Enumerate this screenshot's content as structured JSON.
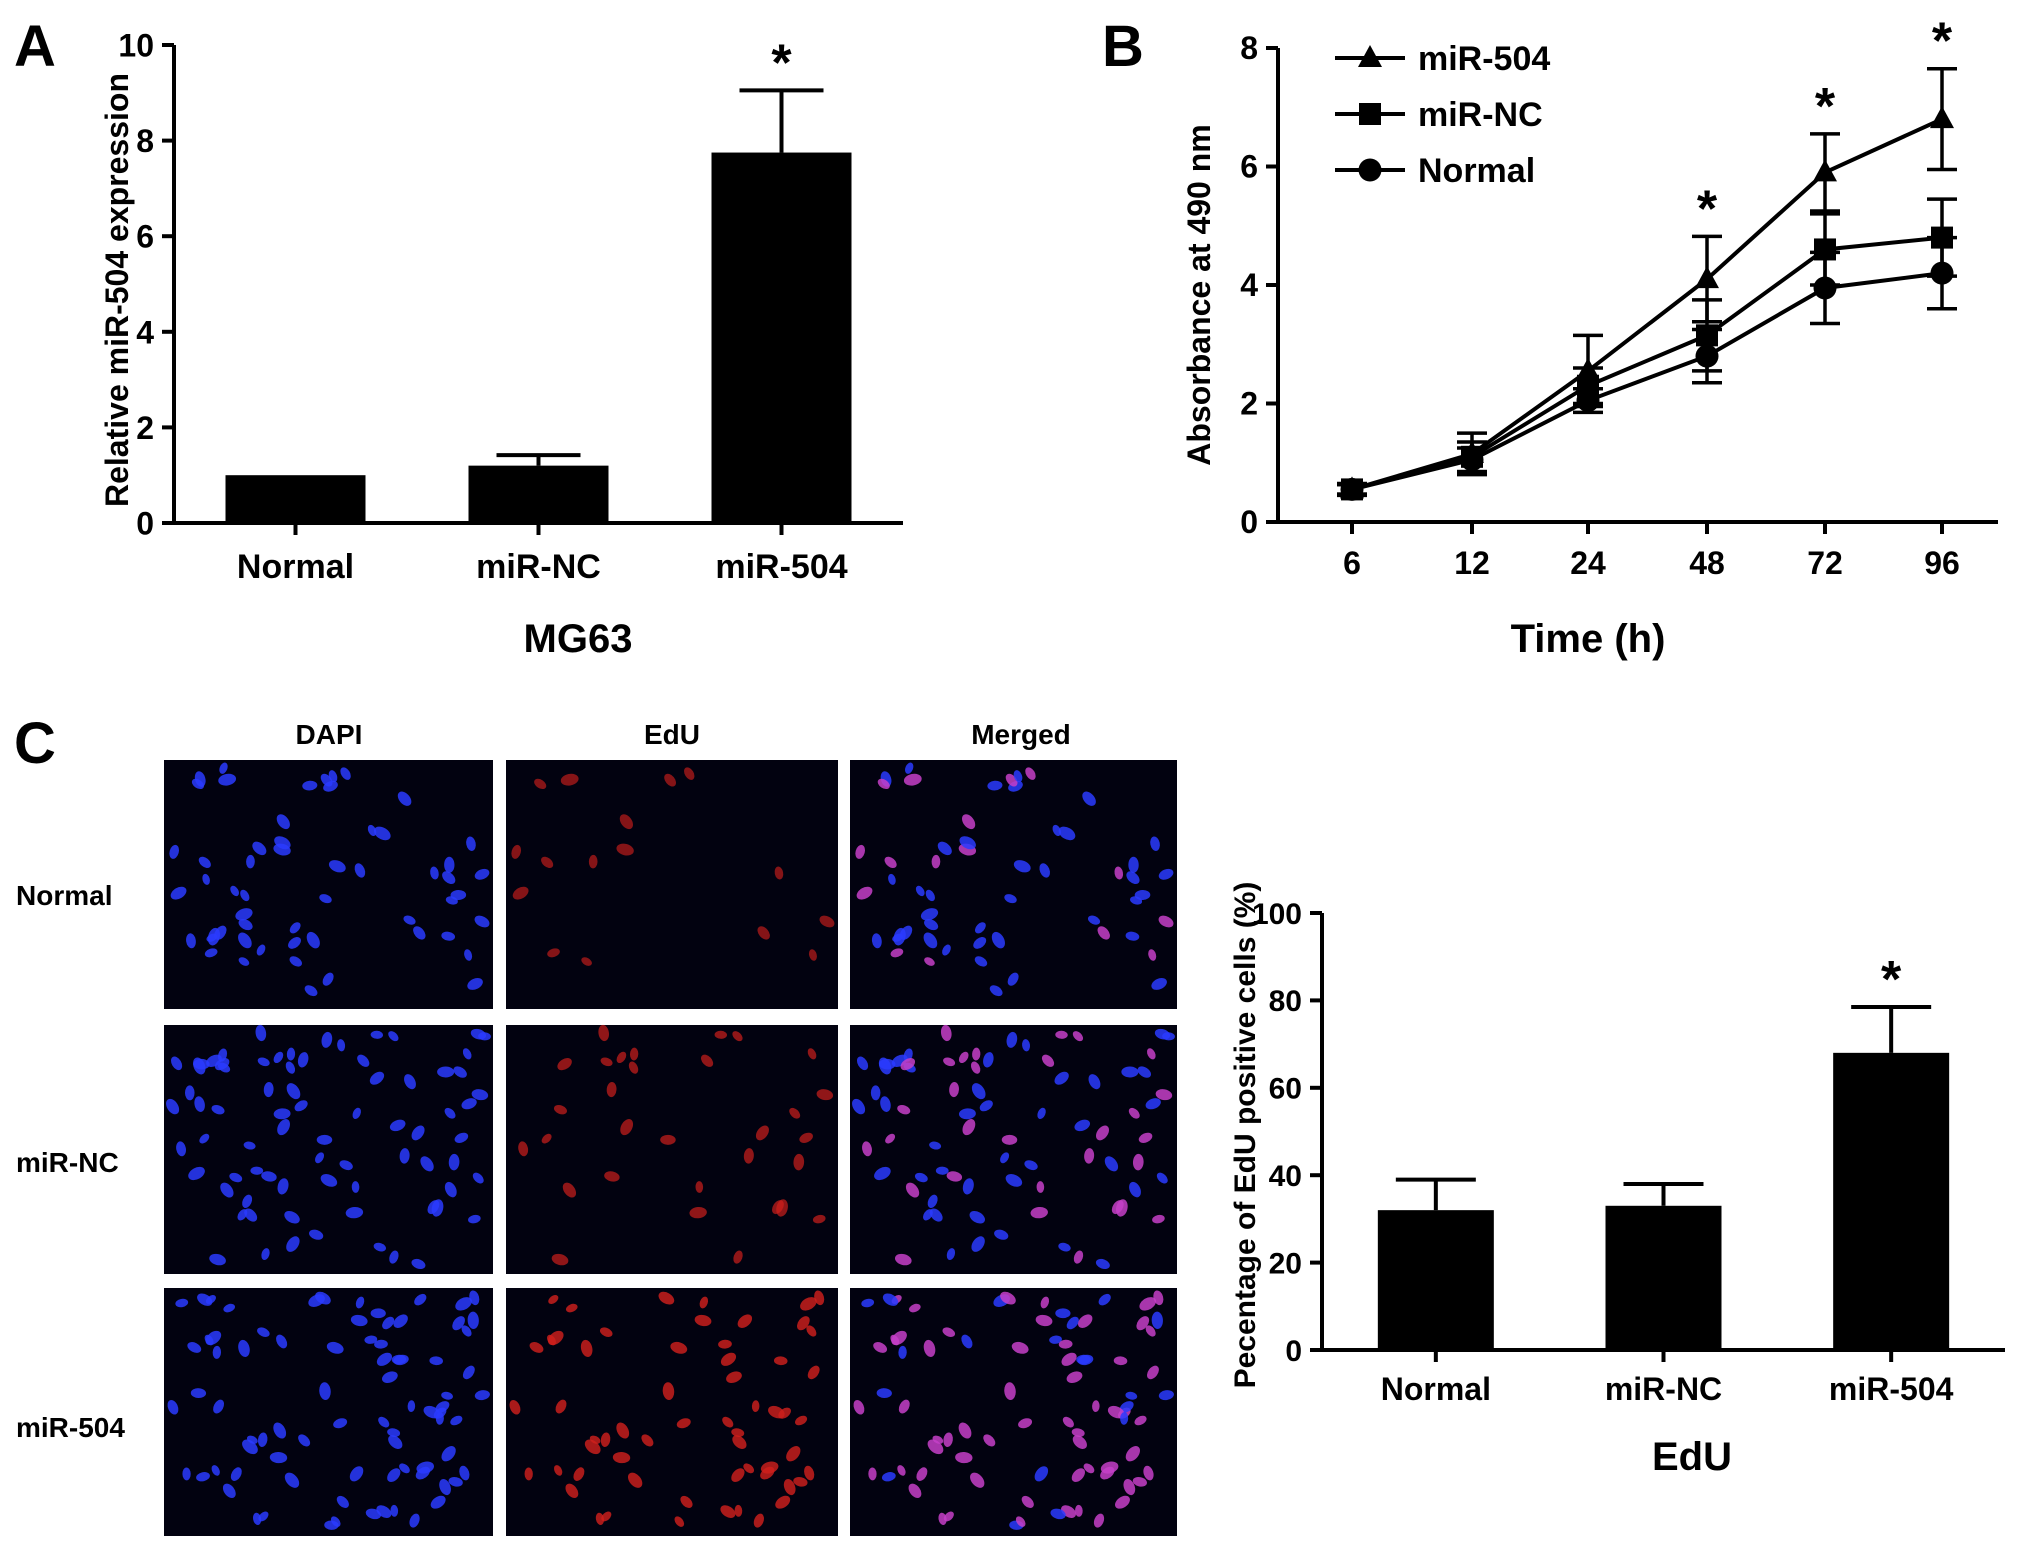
{
  "panels": {
    "a": {
      "label": "A"
    },
    "b": {
      "label": "B"
    },
    "c": {
      "label": "C"
    }
  },
  "chart_data": [
    {
      "id": "panel-a",
      "type": "bar",
      "categories": [
        "Normal",
        "miR-NC",
        "miR-504"
      ],
      "values": [
        1.0,
        1.2,
        7.75
      ],
      "errors": [
        0,
        0.22,
        1.3
      ],
      "significance": [
        "",
        "",
        "*"
      ],
      "xlabel": "MG63",
      "ylabel": "Relative miR-504 expression",
      "ylim": [
        0,
        10
      ],
      "yticks": [
        0,
        2,
        4,
        6,
        8,
        10
      ],
      "ytick_labels": [
        "0",
        "2",
        "4",
        "6",
        "8",
        "10"
      ],
      "bar_color": "#000000"
    },
    {
      "id": "panel-b",
      "type": "line",
      "x": [
        "6",
        "12",
        "24",
        "48",
        "72",
        "96"
      ],
      "series": [
        {
          "name": "miR-504",
          "marker": "triangle",
          "values": [
            0.55,
            1.15,
            2.55,
            4.1,
            5.9,
            6.8
          ],
          "errors": [
            0.1,
            0.35,
            0.6,
            0.72,
            0.65,
            0.85
          ]
        },
        {
          "name": "miR-NC",
          "marker": "square",
          "values": [
            0.55,
            1.1,
            2.3,
            3.15,
            4.6,
            4.8
          ],
          "errors": [
            0.08,
            0.25,
            0.3,
            0.6,
            0.6,
            0.65
          ]
        },
        {
          "name": "Normal",
          "marker": "circle",
          "values": [
            0.55,
            1.05,
            2.05,
            2.8,
            3.95,
            4.2
          ],
          "errors": [
            0.08,
            0.2,
            0.2,
            0.45,
            0.6,
            0.6
          ]
        }
      ],
      "significance": [
        "",
        "",
        "",
        "*",
        "*",
        "*"
      ],
      "xlabel": "Time (h)",
      "ylabel": "Absorbance at 490 nm",
      "ylim": [
        0,
        8
      ],
      "yticks": [
        0,
        2,
        4,
        6,
        8
      ],
      "ytick_labels": [
        "0",
        "2",
        "4",
        "6",
        "8"
      ],
      "legend": "top-left"
    },
    {
      "id": "panel-c",
      "type": "bar",
      "categories": [
        "Normal",
        "miR-NC",
        "miR-504"
      ],
      "values": [
        32,
        33,
        68
      ],
      "errors": [
        7,
        5,
        10.5
      ],
      "significance": [
        "",
        "",
        "*"
      ],
      "xlabel": "EdU",
      "ylabel": "Pecentage of EdU positive cells (%)",
      "ylim": [
        0,
        100
      ],
      "yticks": [
        0,
        20,
        40,
        60,
        80,
        100
      ],
      "ytick_labels": [
        "0",
        "20",
        "40",
        "60",
        "80",
        "100"
      ],
      "bar_color": "#000000"
    }
  ],
  "micrographs": {
    "columns": [
      "DAPI",
      "EdU",
      "Merged"
    ],
    "rows": [
      "Normal",
      "miR-NC",
      "miR-504"
    ],
    "colors": {
      "background": "#020210",
      "dapi": "#2a3bff",
      "edu": "#d0201c",
      "merged_overlap": "#c63fc8"
    }
  }
}
